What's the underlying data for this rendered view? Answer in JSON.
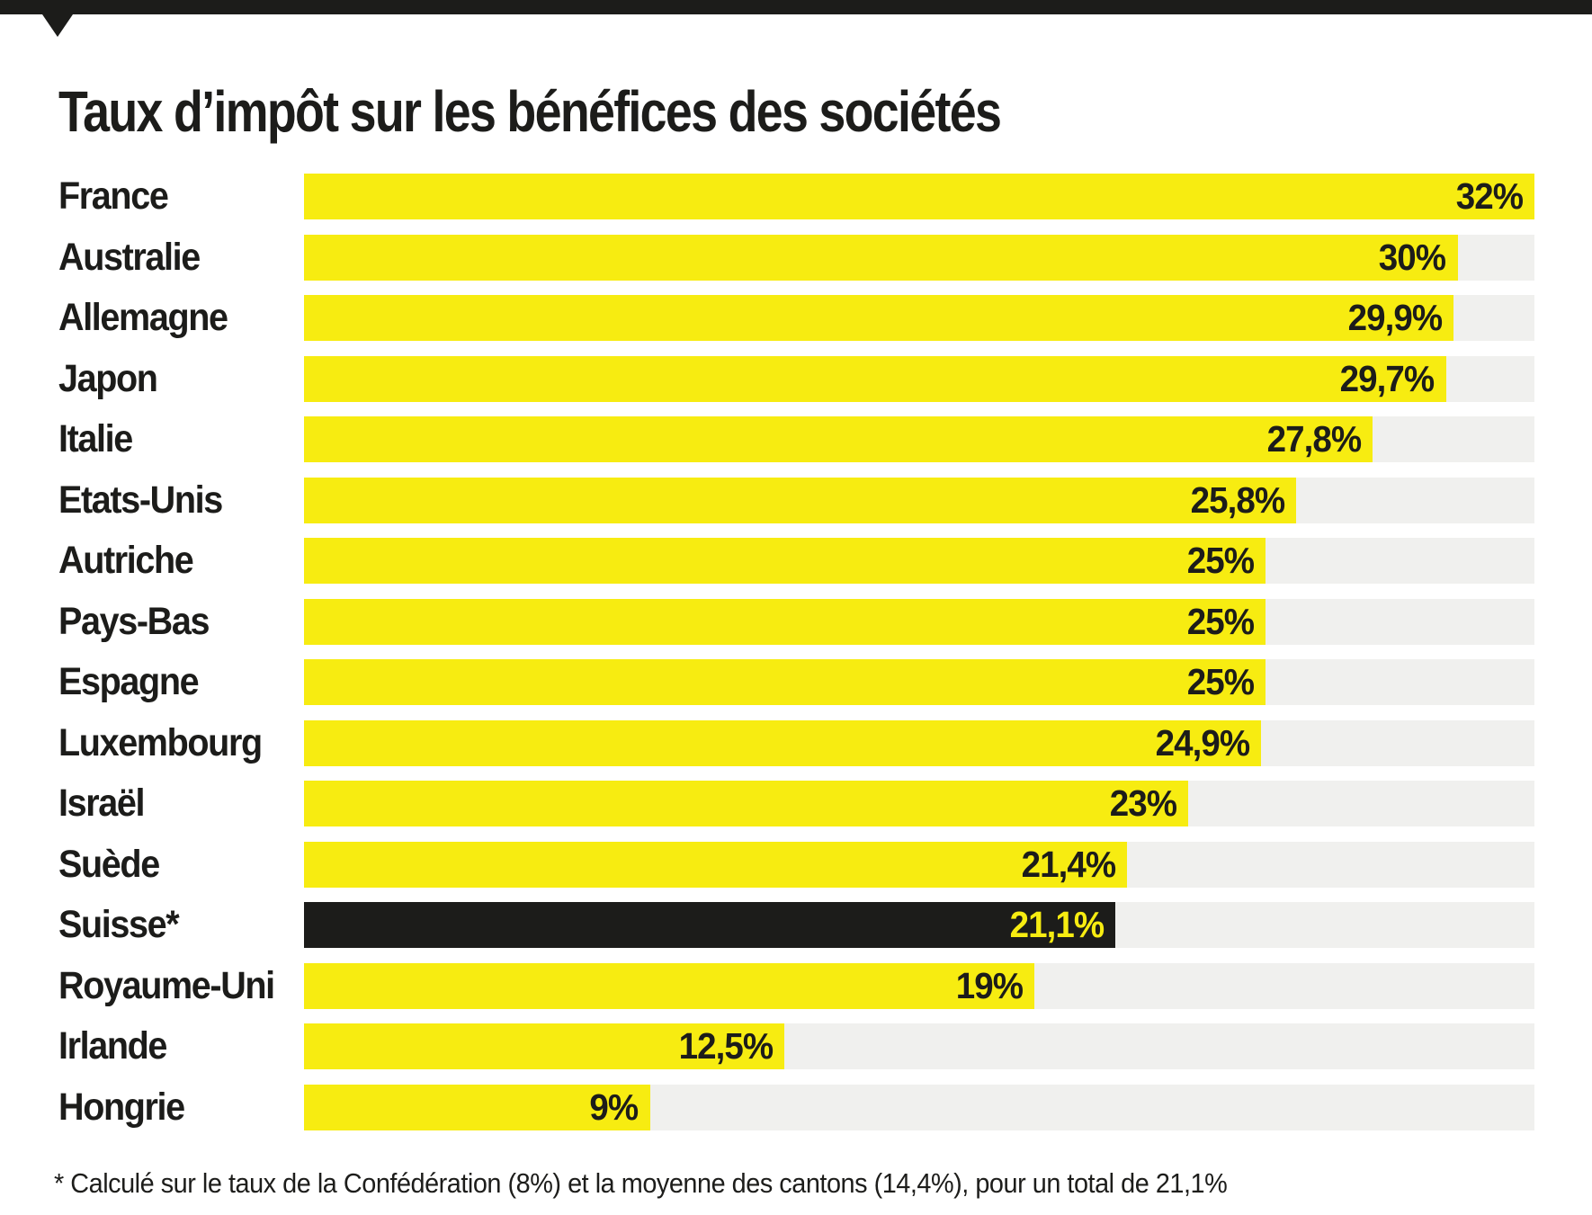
{
  "title": "Taux d’impôt sur les bénéfices des sociétés",
  "footnote": "* Calculé sur le taux de la Confédération (8%) et la moyenne des cantons (14,4%), pour un total de 21,1%",
  "colors": {
    "bar_yellow": "#f7ec11",
    "bar_black": "#1c1c1a",
    "track_gray": "#f0f0ee",
    "text_black": "#1d1d1b"
  },
  "chart_data": {
    "type": "bar",
    "orientation": "horizontal",
    "title": "Taux d’impôt sur les bénéfices des sociétés",
    "unit": "%",
    "xlim": [
      0,
      32
    ],
    "grid": false,
    "legend": false,
    "categories": [
      "France",
      "Australie",
      "Allemagne",
      "Japon",
      "Italie",
      "Etats-Unis",
      "Autriche",
      "Pays-Bas",
      "Espagne",
      "Luxembourg",
      "Israël",
      "Suède",
      "Suisse*",
      "Royaume-Uni",
      "Irlande",
      "Hongrie"
    ],
    "values": [
      32,
      30,
      29.9,
      29.7,
      27.8,
      25.8,
      25,
      25,
      25,
      24.9,
      23,
      21.4,
      21.1,
      19,
      12.5,
      9
    ],
    "value_labels": [
      "32%",
      "30%",
      "29,9%",
      "29,7%",
      "27,8%",
      "25,8%",
      "25%",
      "25%",
      "25%",
      "24,9%",
      "23%",
      "21,4%",
      "21,1%",
      "19%",
      "12,5%",
      "9%"
    ],
    "highlighted_index": 12,
    "highlight_note": "Suisse* drawn as black bar with yellow value label"
  }
}
